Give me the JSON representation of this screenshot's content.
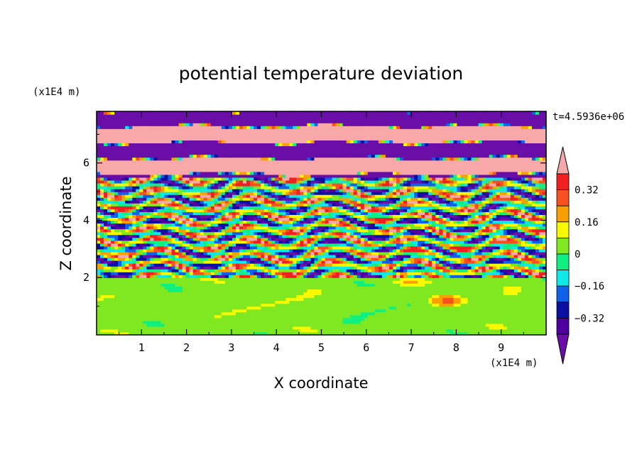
{
  "chart_data": {
    "type": "heatmap",
    "title": "potential temperature deviation",
    "xlabel": "X coordinate",
    "ylabel": "Z coordinate",
    "x_unit": "(x1E4 m)",
    "y_unit": "(x1E4 m)",
    "time_label": "t=4.5936e+06",
    "xlim": [
      0,
      10
    ],
    "ylim": [
      0,
      7.8
    ],
    "xticks": [
      "1",
      "2",
      "3",
      "4",
      "5",
      "6",
      "7",
      "8",
      "9"
    ],
    "yticks": [
      "2",
      "4",
      "6"
    ],
    "colorbar": {
      "levels": [
        -0.4,
        -0.32,
        -0.24,
        -0.16,
        -0.08,
        0,
        0.08,
        0.16,
        0.24,
        0.32,
        0.4
      ],
      "labels": [
        "0.32",
        "0.16",
        "0",
        "−0.16",
        "−0.32"
      ],
      "colors_low_to_high": [
        "#6a0ea8",
        "#5000a0",
        "#0a10a0",
        "#1060e8",
        "#10e8e8",
        "#10f080",
        "#80e820",
        "#f8f800",
        "#f8a000",
        "#f85020",
        "#f02020",
        "#f8a8a8"
      ],
      "extend": "both"
    },
    "layers": [
      {
        "z_range": [
          0,
          2.0
        ],
        "pattern": "near-zero green/lime mix",
        "value_range": [
          -0.05,
          0.1
        ]
      },
      {
        "z_range": [
          2.0,
          5.5
        ],
        "pattern": "turbulent mixed bands",
        "value_range": [
          -0.4,
          0.4
        ]
      },
      {
        "z_range": [
          5.5,
          7.8
        ],
        "pattern": "alternating purple/pink horizontal stripes",
        "value_range": [
          -0.4,
          0.4
        ]
      }
    ],
    "feature": {
      "x": 7.8,
      "z": 1.2,
      "description": "warm anomaly blob",
      "value": 0.3
    }
  }
}
